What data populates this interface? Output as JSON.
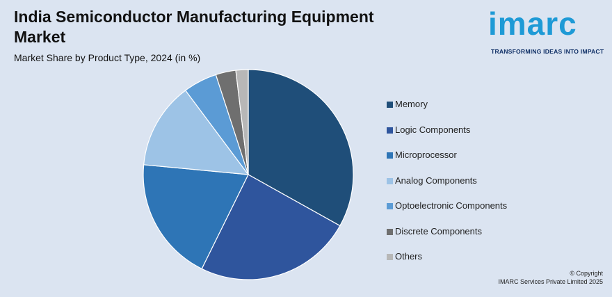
{
  "header": {
    "title": "India Semiconductor Manufacturing Equipment Market",
    "subtitle": "Market Share by Product Type, 2024 (in %)"
  },
  "logo": {
    "wordmark": "imarc",
    "tagline": "TRANSFORMING IDEAS INTO IMPACT"
  },
  "chart_data": {
    "type": "pie",
    "title": "India Semiconductor Manufacturing Equipment Market",
    "subtitle": "Market Share by Product Type, 2024 (in %)",
    "unit": "%",
    "legend_position": "right",
    "categories": [
      "Memory",
      "Logic Components",
      "Microprocessor",
      "Analog Components",
      "Optoelectronic Components",
      "Discrete Components",
      "Others"
    ],
    "values": [
      33.1,
      24.2,
      19.2,
      13.3,
      5.2,
      3.1,
      1.9
    ],
    "colors": [
      "#1f4e79",
      "#2f559d",
      "#2e75b6",
      "#9dc3e6",
      "#5b9bd5",
      "#6f6f6f",
      "#b7b7b7"
    ]
  },
  "footer": {
    "copyright_line1": "© Copyright",
    "copyright_line2": "IMARC Services Private Limited 2025"
  }
}
